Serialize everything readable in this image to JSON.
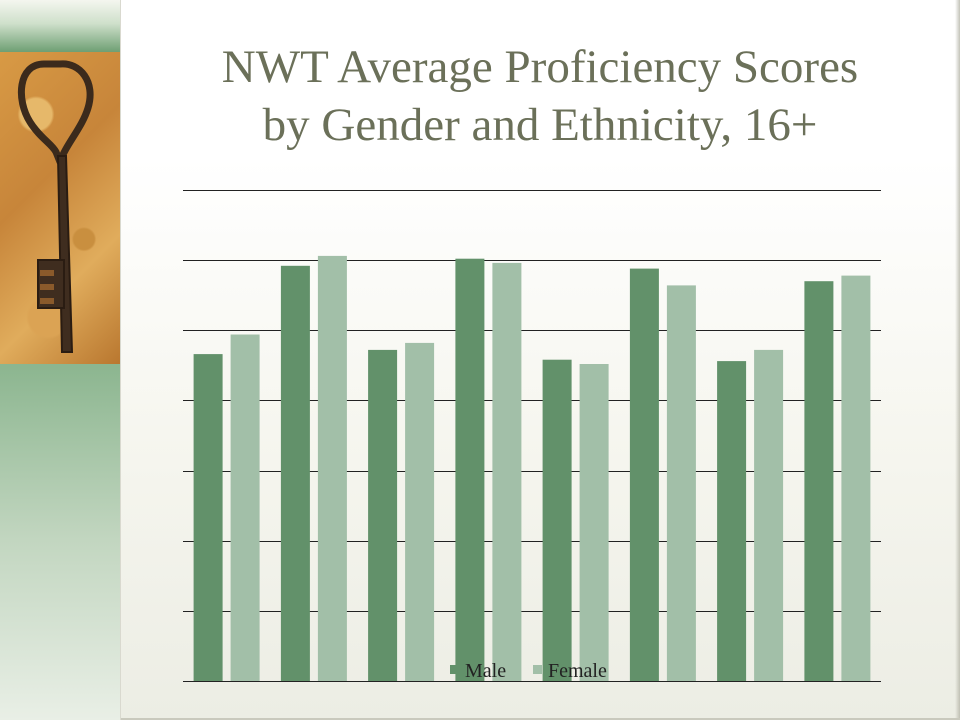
{
  "slide": {
    "title_line1": "NWT Average Proficiency Scores",
    "title_line2": "by Gender and Ethnicity, 16+"
  },
  "colors": {
    "male": "#62916a",
    "female": "#a2bfa8",
    "gridline": "#222222",
    "title": "#6b7059"
  },
  "chart_data": {
    "type": "bar",
    "title": "",
    "xlabel": "",
    "ylabel": "",
    "categories": [
      "",
      "",
      "",
      "",
      "",
      "",
      "",
      ""
    ],
    "series": [
      {
        "name": "Male",
        "values": [
          233,
          296,
          236,
          301,
          229,
          294,
          228,
          285
        ]
      },
      {
        "name": "Female",
        "values": [
          247,
          303,
          241,
          298,
          226,
          282,
          236,
          289
        ]
      }
    ],
    "ylim": [
      0,
      350
    ],
    "grid": true,
    "tick_labels_visible": false,
    "legend_position": "bottom"
  }
}
